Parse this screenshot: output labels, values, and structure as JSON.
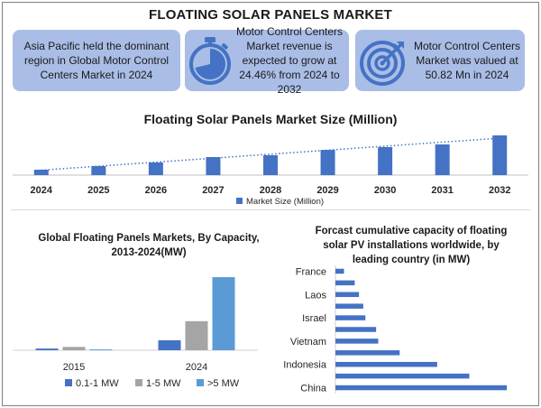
{
  "page": {
    "title": "FLOATING SOLAR PANELS MARKET"
  },
  "cards": [
    {
      "text": "Asia Pacific held the dominant region in Global Motor Control Centers Market in 2024",
      "icon": ""
    },
    {
      "text": "Motor Control Centers Market revenue is expected to grow at 24.46% from 2024 to 2032",
      "icon": "stopwatch-icon"
    },
    {
      "text": "Motor Control Centers Market was valued at 50.82 Mn in 2024",
      "icon": "target-icon"
    }
  ],
  "colors": {
    "card_bg": "#a9bde6",
    "icon_blue": "#4472c4",
    "bar_blue": "#4472c4",
    "bar_gray": "#a5a5a5",
    "bar_light_blue": "#5b9bd5"
  },
  "chart_data": [
    {
      "type": "bar",
      "title": "Floating Solar Panels Market Size (Million)",
      "categories": [
        "2024",
        "2025",
        "2026",
        "2027",
        "2028",
        "2029",
        "2030",
        "2031",
        "2032"
      ],
      "series": [
        {
          "name": "Market Size (Million)",
          "values": [
            6,
            10,
            14,
            20,
            22,
            28,
            31,
            34,
            44
          ]
        }
      ],
      "trendline": "dotted linear",
      "ylim": [
        0,
        50
      ],
      "legend": "bottom",
      "grid": false
    },
    {
      "type": "bar",
      "title": "Global Floating Panels Markets, By Capacity, 2013-2024(MW)",
      "categories": [
        "2015",
        "2024"
      ],
      "series": [
        {
          "name": "0.1-1 MW",
          "values": [
            2,
            12
          ]
        },
        {
          "name": "1-5 MW",
          "values": [
            4,
            35
          ]
        },
        {
          "name": ">5 MW",
          "values": [
            1,
            88
          ]
        }
      ],
      "ylim": [
        0,
        100
      ],
      "legend": "bottom",
      "grid": false
    },
    {
      "type": "bar",
      "orientation": "horizontal",
      "title": "Forcast cumulative capacity of floating solar PV installations worldwide, by leading country (in MW)",
      "categories": [
        "France",
        "",
        "Laos",
        "",
        "Israel",
        "",
        "Vietnam",
        "",
        "Indonesia",
        "",
        "China"
      ],
      "values": [
        8,
        18,
        22,
        26,
        28,
        38,
        40,
        60,
        95,
        125,
        160
      ],
      "xlim": [
        0,
        165
      ],
      "grid": false
    }
  ]
}
